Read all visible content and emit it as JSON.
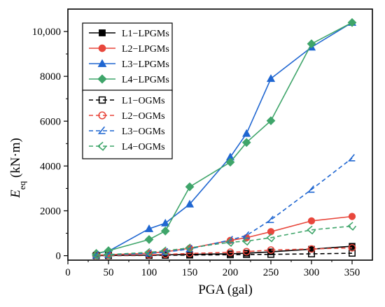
{
  "chart_data": {
    "type": "line",
    "x": [
      35,
      50,
      100,
      120,
      150,
      200,
      220,
      250,
      300,
      350
    ],
    "xlabel": "PGA (gal)",
    "ylabel_main": "E",
    "ylabel_sub": "eq",
    "ylabel_unit": " (kN·m)",
    "xlim": [
      0,
      375
    ],
    "ylim": [
      -200,
      11000
    ],
    "xticks": [
      0,
      50,
      100,
      150,
      200,
      250,
      300,
      350
    ],
    "xtick_labels": [
      "0",
      "50",
      "100",
      "150",
      "200",
      "250",
      "300",
      "350"
    ],
    "yticks": [
      0,
      2000,
      4000,
      6000,
      8000,
      10000
    ],
    "ytick_labels": [
      "0",
      "2000",
      "4000",
      "6000",
      "8000",
      "10,000"
    ],
    "legend_placement": "top-left",
    "grid": false,
    "series": [
      {
        "name": "L1−LPGMs",
        "color": "#000000",
        "marker": "square",
        "filled": true,
        "dash": false,
        "values": [
          5,
          10,
          25,
          35,
          55,
          85,
          110,
          170,
          290,
          420
        ]
      },
      {
        "name": "L2−LPGMs",
        "color": "#e8473c",
        "marker": "circle",
        "filled": true,
        "dash": false,
        "values": [
          25,
          40,
          110,
          170,
          330,
          680,
          800,
          1070,
          1550,
          1750
        ]
      },
      {
        "name": "L3−LPGMs",
        "color": "#1f66d1",
        "marker": "triangle",
        "filled": true,
        "dash": false,
        "values": [
          100,
          200,
          1200,
          1450,
          2300,
          4400,
          5450,
          7900,
          9300,
          10400
        ]
      },
      {
        "name": "L4−LPGMs",
        "color": "#3fa56a",
        "marker": "diamond",
        "filled": true,
        "dash": false,
        "values": [
          100,
          220,
          720,
          1100,
          3070,
          4170,
          5050,
          6020,
          9450,
          10400
        ]
      },
      {
        "name": "L1−OGMs",
        "color": "#000000",
        "marker": "square",
        "filled": false,
        "dash": true,
        "values": [
          2,
          4,
          12,
          18,
          28,
          40,
          50,
          60,
          80,
          110
        ]
      },
      {
        "name": "L2−OGMs",
        "color": "#e8473c",
        "marker": "circle",
        "filled": false,
        "dash": true,
        "values": [
          10,
          15,
          40,
          60,
          100,
          150,
          180,
          250,
          300,
          350
        ]
      },
      {
        "name": "L3−OGMs",
        "color": "#1f66d1",
        "marker": "triangle-left",
        "filled": false,
        "dash": true,
        "values": [
          20,
          40,
          100,
          160,
          300,
          700,
          900,
          1600,
          2950,
          4350
        ]
      },
      {
        "name": "L4−OGMs",
        "color": "#3fa56a",
        "marker": "diamond-left",
        "filled": false,
        "dash": true,
        "values": [
          30,
          50,
          150,
          220,
          350,
          600,
          650,
          800,
          1150,
          1320
        ]
      }
    ]
  }
}
